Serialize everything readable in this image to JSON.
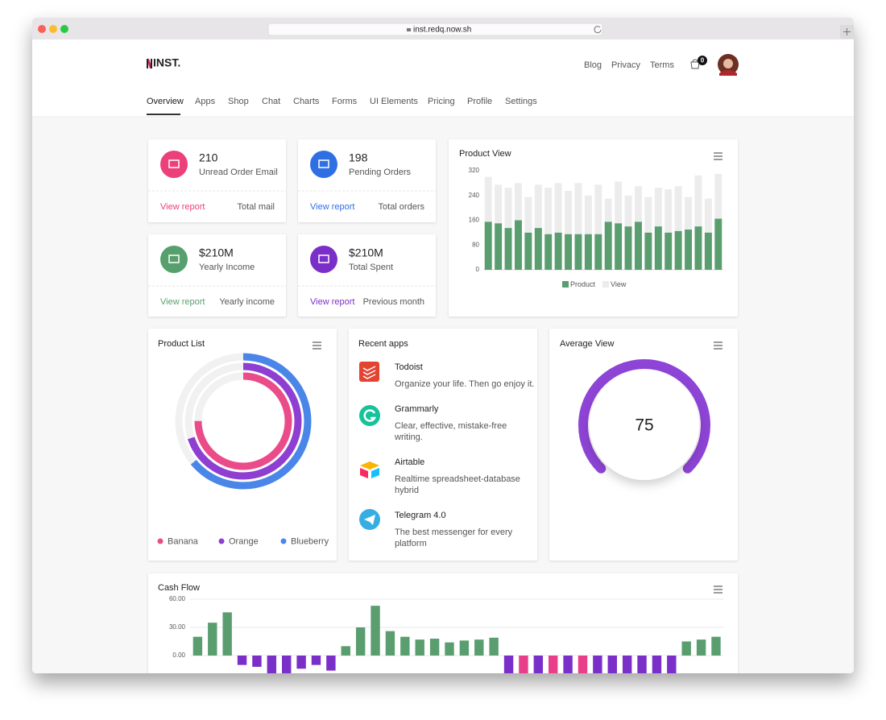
{
  "browser": {
    "url": "inst.redq.now.sh"
  },
  "header": {
    "logo": "INST.",
    "links": [
      "Blog",
      "Privacy",
      "Terms"
    ],
    "cart_count": "0"
  },
  "nav": {
    "items": [
      "Overview",
      "Apps",
      "Shop",
      "Chat",
      "Charts",
      "Forms",
      "UI Elements",
      "Pricing",
      "Profile",
      "Settings"
    ]
  },
  "stats": [
    {
      "value": "210",
      "label": "Unread Order Email",
      "link": "View report",
      "note": "Total mail",
      "color": "#ec407a"
    },
    {
      "value": "198",
      "label": "Pending Orders",
      "link": "View report",
      "note": "Total orders",
      "color": "#2f6fe4"
    },
    {
      "value": "$210M",
      "label": "Yearly Income",
      "link": "View report",
      "note": "Yearly income",
      "color": "#55a06c"
    },
    {
      "value": "$210M",
      "label": "Total Spent",
      "link": "View report",
      "note": "Previous month",
      "color": "#7b2fc9"
    }
  ],
  "recent_apps": {
    "title": "Recent apps",
    "items": [
      {
        "name": "Todoist",
        "description": [
          "Organize your life. Then go enjoy it."
        ]
      },
      {
        "name": "Grammarly",
        "description": [
          "Clear, effective, mistake-free",
          "writing."
        ]
      },
      {
        "name": "Airtable",
        "description": [
          "Realtime spreadsheet-database",
          "hybrid"
        ]
      },
      {
        "name": "Telegram 4.0",
        "description": [
          "The best messenger for every",
          "platform"
        ]
      }
    ]
  },
  "chart_data": [
    {
      "type": "bar",
      "title": "Product View",
      "ylim": [
        0,
        320
      ],
      "yticks": [
        0,
        80,
        160,
        240,
        320
      ],
      "series": [
        {
          "name": "Product",
          "color": "#5a9e6f",
          "values": [
            155,
            150,
            135,
            160,
            120,
            135,
            115,
            120,
            115,
            115,
            115,
            115,
            155,
            150,
            140,
            155,
            120,
            140,
            120,
            125,
            130,
            140,
            120,
            165
          ]
        },
        {
          "name": "View",
          "color": "#ececec",
          "values": [
            300,
            275,
            265,
            280,
            235,
            275,
            265,
            280,
            255,
            280,
            240,
            275,
            230,
            285,
            240,
            270,
            235,
            265,
            260,
            270,
            235,
            305,
            230,
            310
          ]
        }
      ]
    },
    {
      "type": "radial",
      "title": "Product List",
      "ylim": [
        0,
        100
      ],
      "categories": [
        "Banana",
        "Orange",
        "Blueberry"
      ],
      "values": [
        75,
        70,
        64
      ],
      "colors": [
        "#ea4c89",
        "#8e3fd1",
        "#4a86e8"
      ]
    },
    {
      "type": "gauge",
      "title": "Average View",
      "value": 75,
      "color": "#8e44d6"
    },
    {
      "type": "bar",
      "title": "Cash Flow",
      "ylim": [
        -20,
        60
      ],
      "yticks": [
        {
          "value": 0,
          "label": "0.00"
        },
        {
          "value": 30,
          "label": "30.00"
        },
        {
          "value": 60,
          "label": "60.00"
        }
      ],
      "values": [
        20,
        35,
        46,
        -10,
        -12,
        -22,
        -22,
        -14,
        -10,
        -16,
        10,
        30,
        53,
        26,
        20,
        17,
        18,
        14,
        16,
        17,
        19,
        -22,
        -22,
        -22,
        -22,
        -22,
        -22,
        -22,
        -22,
        -22,
        -22,
        -22,
        -22,
        15,
        17,
        20
      ],
      "colors": [
        "#5a9e6f",
        "#5a9e6f",
        "#5a9e6f",
        "#7b2fc9",
        "#7b2fc9",
        "#7b2fc9",
        "#7b2fc9",
        "#7b2fc9",
        "#7b2fc9",
        "#7b2fc9",
        "#5a9e6f",
        "#5a9e6f",
        "#5a9e6f",
        "#5a9e6f",
        "#5a9e6f",
        "#5a9e6f",
        "#5a9e6f",
        "#5a9e6f",
        "#5a9e6f",
        "#5a9e6f",
        "#5a9e6f",
        "#7b2fc9",
        "#e93e8a",
        "#7b2fc9",
        "#e93e8a",
        "#7b2fc9",
        "#e93e8a",
        "#7b2fc9",
        "#7b2fc9",
        "#7b2fc9",
        "#7b2fc9",
        "#7b2fc9",
        "#7b2fc9",
        "#5a9e6f",
        "#5a9e6f",
        "#5a9e6f"
      ]
    }
  ]
}
